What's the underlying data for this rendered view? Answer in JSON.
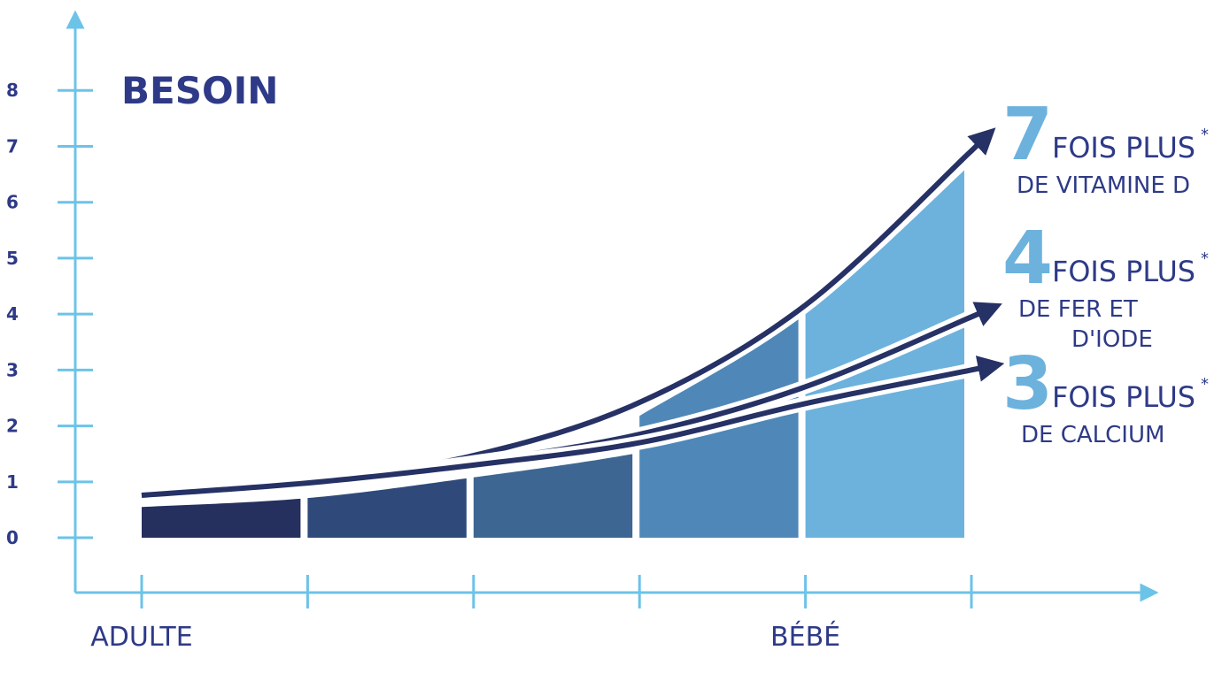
{
  "chart_data": {
    "type": "area",
    "title": "BESOIN",
    "categories": [
      "ADULTE",
      null,
      null,
      null,
      "BÉBÉ",
      null
    ],
    "ylim": [
      -0.98,
      9.38
    ],
    "yticks": [
      0,
      1,
      2,
      3,
      4,
      5,
      6,
      7,
      8
    ],
    "area": {
      "values": [
        0.55,
        0.71,
        1.08,
        1.52,
        2.15,
        2.81
      ],
      "upper": [
        null,
        null,
        null,
        2.18,
        4.0,
        6.69
      ],
      "colors": [
        "#25305f",
        "#2f4a7a",
        "#3e6693",
        "#4f88b8",
        "#6cb2dd"
      ]
    },
    "series": [
      {
        "color": "#263165",
        "values": [
          0.76,
          1.0,
          1.47,
          2.42,
          4.16,
          6.92
        ]
      },
      {
        "color": "#263165",
        "values": [
          0.76,
          1.0,
          1.35,
          1.85,
          2.7,
          3.95
        ]
      },
      {
        "color": "#263165",
        "values": [
          0.76,
          0.98,
          1.3,
          1.7,
          2.4,
          3.0
        ]
      }
    ],
    "annotations": [
      {
        "number": "7",
        "text": "FOIS PLUS",
        "mark": "*",
        "detail": [
          "DE VITAMINE D"
        ]
      },
      {
        "number": "4",
        "text": "FOIS PLUS",
        "mark": "*",
        "detail": [
          "DE FER ET",
          "D'IODE"
        ]
      },
      {
        "number": "3",
        "text": "FOIS PLUS",
        "mark": "*",
        "detail": [
          "DE CALCIUM"
        ]
      }
    ]
  }
}
